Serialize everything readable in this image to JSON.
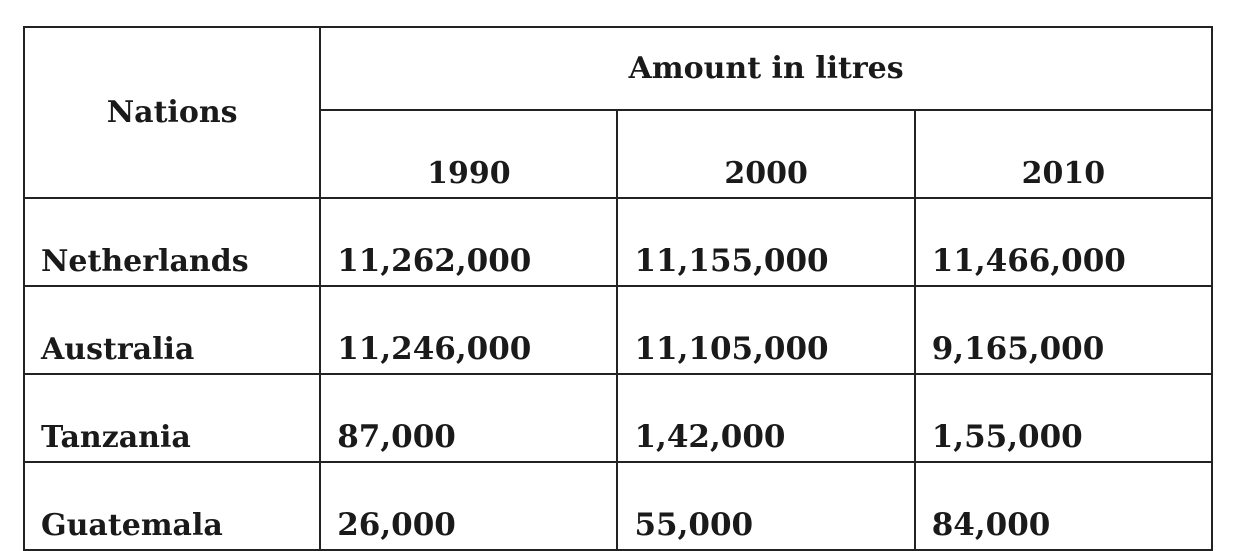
{
  "table": {
    "nations_header": "Nations",
    "amount_header": "Amount in litres",
    "years": [
      "1990",
      "2000",
      "2010"
    ],
    "rows": [
      {
        "nation": "Netherlands",
        "values": [
          "11,262,000",
          "11,155,000",
          "11,466,000"
        ]
      },
      {
        "nation": "Australia",
        "values": [
          "11,246,000",
          "11,105,000",
          "9,165,000"
        ]
      },
      {
        "nation": "Tanzania",
        "values": [
          "87,000",
          "1,42,000",
          "1,55,000"
        ]
      },
      {
        "nation": "Guatemala",
        "values": [
          "26,000",
          "55,000",
          "84,000"
        ]
      }
    ]
  }
}
